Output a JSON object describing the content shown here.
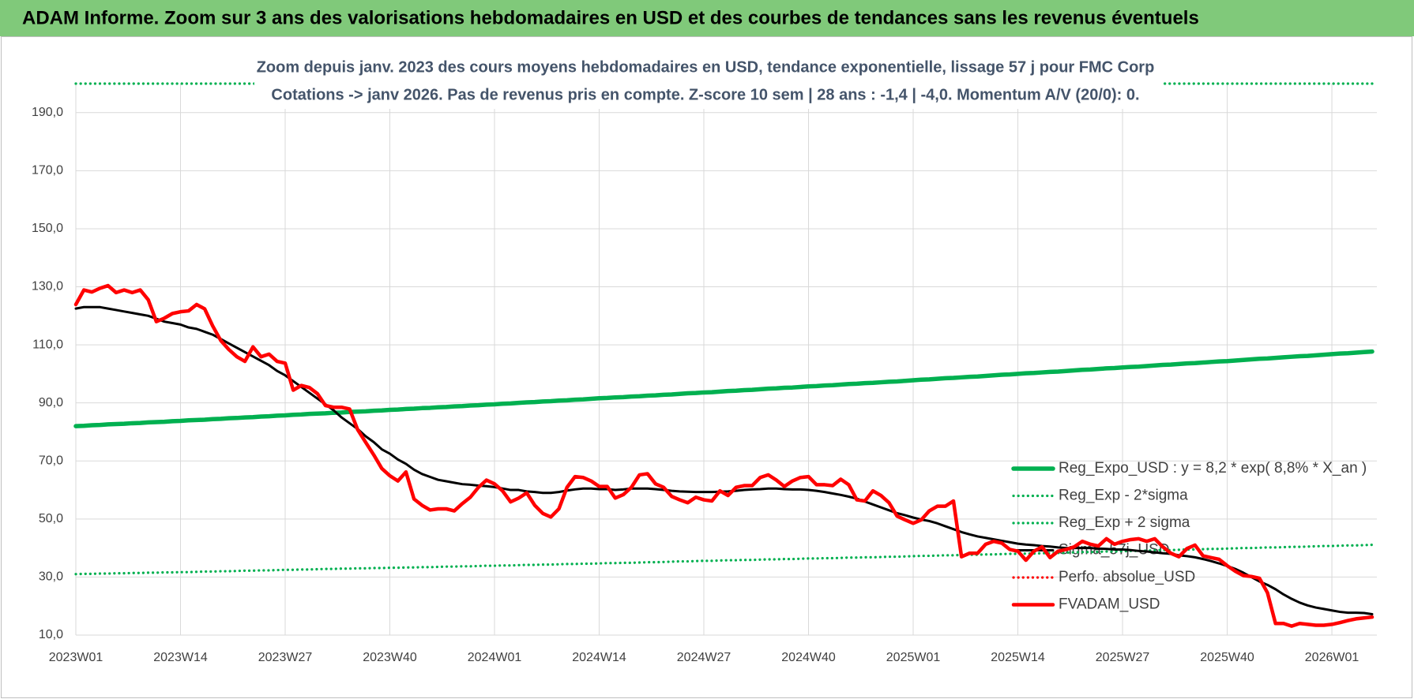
{
  "header": {
    "title": "ADAM Informe. Zoom sur 3 ans des valorisations hebdomadaires en USD et des courbes de tendances sans les revenus éventuels"
  },
  "chart_data": {
    "type": "line",
    "title": "Zoom depuis janv. 2023 des cours moyens hebdomadaires en USD, tendance exponentielle, lissage 57 j pour FMC Corp",
    "subtitle": "Cotations -> janv 2026. Pas de revenus pris en compte. Z-score 10 sem | 28 ans : -1,4 | -4,0. Momentum A/V (20/0): 0.",
    "categories": [
      "2023W01",
      null,
      null,
      null,
      null,
      null,
      null,
      null,
      null,
      null,
      null,
      null,
      null,
      "2023W14",
      null,
      null,
      null,
      null,
      null,
      null,
      null,
      null,
      null,
      null,
      null,
      null,
      "2023W27",
      null,
      null,
      null,
      null,
      null,
      null,
      null,
      null,
      null,
      null,
      null,
      null,
      "2023W40",
      null,
      null,
      null,
      null,
      null,
      null,
      null,
      null,
      null,
      null,
      null,
      null,
      "2024W01",
      null,
      null,
      null,
      null,
      null,
      null,
      null,
      null,
      null,
      null,
      null,
      null,
      "2024W14",
      null,
      null,
      null,
      null,
      null,
      null,
      null,
      null,
      null,
      null,
      null,
      null,
      "2024W27",
      null,
      null,
      null,
      null,
      null,
      null,
      null,
      null,
      null,
      null,
      null,
      null,
      "2024W40",
      null,
      null,
      null,
      null,
      null,
      null,
      null,
      null,
      null,
      null,
      null,
      null,
      "2025W01",
      null,
      null,
      null,
      null,
      null,
      null,
      null,
      null,
      null,
      null,
      null,
      null,
      "2025W14",
      null,
      null,
      null,
      null,
      null,
      null,
      null,
      null,
      null,
      null,
      null,
      null,
      "2025W27",
      null,
      null,
      null,
      null,
      null,
      null,
      null,
      null,
      null,
      null,
      null,
      null,
      "2025W40",
      null,
      null,
      null,
      null,
      null,
      null,
      null,
      null,
      null,
      null,
      null,
      null,
      "2026W01",
      null,
      null,
      null,
      null,
      null
    ],
    "series": [
      {
        "name": "Reg_Expo_USD : y = 8,2 * exp( 8,8% * X_an )",
        "color": "#00b050",
        "style": "solid",
        "values": [
          82.0,
          82.1,
          82.3,
          82.4,
          82.6,
          82.7,
          82.8,
          83.0,
          83.1,
          83.3,
          83.4,
          83.5,
          83.7,
          83.8,
          84.0,
          84.1,
          84.2,
          84.4,
          84.5,
          84.7,
          84.8,
          85.0,
          85.1,
          85.3,
          85.4,
          85.6,
          85.7,
          85.9,
          86.0,
          86.2,
          86.3,
          86.4,
          86.6,
          86.7,
          86.9,
          87.0,
          87.1,
          87.3,
          87.4,
          87.6,
          87.7,
          87.9,
          88.0,
          88.2,
          88.3,
          88.5,
          88.6,
          88.8,
          88.9,
          89.1,
          89.2,
          89.4,
          89.5,
          89.7,
          89.8,
          90.0,
          90.2,
          90.3,
          90.5,
          90.6,
          90.8,
          90.9,
          91.1,
          91.2,
          91.4,
          91.6,
          91.7,
          91.9,
          92.0,
          92.2,
          92.3,
          92.5,
          92.6,
          92.8,
          92.9,
          93.1,
          93.3,
          93.4,
          93.6,
          93.7,
          93.9,
          94.1,
          94.2,
          94.4,
          94.5,
          94.7,
          94.9,
          95.0,
          95.2,
          95.3,
          95.5,
          95.7,
          95.8,
          96.0,
          96.1,
          96.3,
          96.5,
          96.6,
          96.8,
          96.9,
          97.1,
          97.3,
          97.4,
          97.6,
          97.8,
          98.0,
          98.1,
          98.3,
          98.5,
          98.6,
          98.8,
          99.0,
          99.1,
          99.3,
          99.5,
          99.7,
          99.8,
          100.0,
          100.2,
          100.3,
          100.5,
          100.7,
          100.8,
          101.0,
          101.2,
          101.4,
          101.5,
          101.7,
          101.9,
          102.0,
          102.2,
          102.4,
          102.5,
          102.7,
          102.9,
          103.1,
          103.2,
          103.4,
          103.6,
          103.7,
          103.9,
          104.1,
          104.3,
          104.4,
          104.6,
          104.8,
          105.0,
          105.2,
          105.3,
          105.5,
          105.7,
          105.9,
          106.1,
          106.2,
          106.4,
          106.6,
          106.8,
          107.0,
          107.1,
          107.3,
          107.5,
          107.7
        ]
      },
      {
        "name": "Reg_Exp - 2*sigma",
        "color": "#00b050",
        "style": "dotted",
        "values": [
          31.0,
          31.1,
          31.1,
          31.2,
          31.2,
          31.3,
          31.3,
          31.4,
          31.4,
          31.5,
          31.5,
          31.6,
          31.6,
          31.7,
          31.7,
          31.8,
          31.9,
          31.9,
          32.0,
          32.0,
          32.1,
          32.2,
          32.2,
          32.3,
          32.3,
          32.4,
          32.5,
          32.5,
          32.6,
          32.6,
          32.7,
          32.8,
          32.8,
          32.9,
          32.9,
          33.0,
          33.0,
          33.1,
          33.1,
          33.2,
          33.2,
          33.3,
          33.3,
          33.4,
          33.4,
          33.5,
          33.6,
          33.6,
          33.7,
          33.7,
          33.8,
          33.9,
          33.9,
          34.0,
          34.0,
          34.1,
          34.2,
          34.2,
          34.3,
          34.3,
          34.4,
          34.5,
          34.5,
          34.6,
          34.6,
          34.7,
          34.8,
          34.8,
          34.9,
          34.9,
          35.0,
          35.1,
          35.1,
          35.2,
          35.3,
          35.4,
          35.4,
          35.5,
          35.6,
          35.6,
          35.7,
          35.8,
          35.8,
          35.9,
          35.9,
          36.0,
          36.1,
          36.1,
          36.2,
          36.2,
          36.3,
          36.4,
          36.4,
          36.5,
          36.5,
          36.6,
          36.7,
          36.7,
          36.8,
          36.8,
          36.9,
          37.0,
          37.0,
          37.1,
          37.2,
          37.3,
          37.3,
          37.4,
          37.5,
          37.5,
          37.6,
          37.7,
          37.7,
          37.8,
          37.8,
          37.9,
          38.0,
          38.0,
          38.1,
          38.1,
          38.2,
          38.3,
          38.3,
          38.4,
          38.5,
          38.6,
          38.6,
          38.7,
          38.8,
          38.8,
          38.9,
          39.0,
          39.0,
          39.1,
          39.2,
          39.3,
          39.3,
          39.4,
          39.5,
          39.5,
          39.6,
          39.7,
          39.7,
          39.8,
          39.9,
          40.0,
          40.0,
          40.1,
          40.2,
          40.2,
          40.3,
          40.4,
          40.4,
          40.5,
          40.6,
          40.7,
          40.7,
          40.8,
          40.9,
          40.9,
          41.0,
          41.1
        ]
      },
      {
        "name": "Reg_Exp + 2 sigma",
        "color": "#00b050",
        "style": "dotted",
        "values": [
          200,
          200,
          200,
          200,
          200,
          200,
          200,
          200,
          200,
          200,
          200,
          200,
          200,
          200,
          200,
          200,
          200,
          200,
          200,
          200,
          200,
          200,
          200,
          200,
          200,
          200,
          200,
          200,
          200,
          200,
          200,
          200,
          200,
          200,
          200,
          200,
          200,
          200,
          200,
          200,
          200,
          200,
          200,
          200,
          200,
          200,
          200,
          200,
          200,
          200,
          200,
          200,
          200,
          200,
          200,
          200,
          200,
          200,
          200,
          200,
          200,
          200,
          200,
          200,
          200,
          200,
          200,
          200,
          200,
          200,
          200,
          200,
          200,
          200,
          200,
          200,
          200,
          200,
          200,
          200,
          200,
          200,
          200,
          200,
          200,
          200,
          200,
          200,
          200,
          200,
          200,
          200,
          200,
          200,
          200,
          200,
          200,
          200,
          200,
          200,
          200,
          200,
          200,
          200,
          200,
          200,
          200,
          200,
          200,
          200,
          200,
          200,
          200,
          200,
          200,
          200,
          200,
          200,
          200,
          200,
          200,
          200,
          200,
          200,
          200,
          200,
          200,
          200,
          200,
          200,
          200,
          200,
          200,
          200,
          200,
          200,
          200,
          200,
          200,
          200,
          200,
          200,
          200,
          200,
          200,
          200,
          200,
          200,
          200,
          200,
          200,
          200,
          200,
          200,
          200,
          200,
          200,
          200,
          200,
          200,
          200,
          200
        ]
      },
      {
        "name": "Sigma_57j_USD",
        "color": "#000000",
        "style": "solid",
        "values": [
          122.5,
          123.0,
          123.0,
          123.0,
          122.5,
          122.0,
          121.5,
          121.0,
          120.5,
          120.0,
          119.0,
          118.0,
          117.5,
          117.0,
          116.0,
          115.5,
          114.5,
          113.5,
          112.0,
          110.5,
          109.0,
          107.5,
          106.0,
          104.5,
          103.0,
          101.0,
          99.5,
          97.5,
          95.5,
          93.5,
          91.5,
          89.5,
          87.5,
          85.0,
          83.0,
          81.0,
          78.5,
          76.5,
          74.0,
          72.5,
          70.5,
          69.0,
          67.0,
          65.5,
          64.5,
          63.5,
          63.0,
          62.5,
          62.0,
          61.8,
          61.5,
          61.3,
          61.0,
          60.5,
          60.0,
          60.0,
          59.5,
          59.3,
          59.0,
          59.0,
          59.3,
          59.8,
          60.2,
          60.5,
          60.5,
          60.3,
          60.3,
          60.0,
          60.2,
          60.5,
          60.5,
          60.5,
          60.3,
          60.0,
          59.7,
          59.5,
          59.4,
          59.3,
          59.3,
          59.3,
          59.4,
          59.5,
          59.7,
          60.0,
          60.2,
          60.3,
          60.5,
          60.5,
          60.3,
          60.2,
          60.2,
          60.0,
          59.7,
          59.3,
          58.8,
          58.3,
          57.7,
          57.0,
          56.0,
          55.0,
          54.0,
          53.0,
          52.0,
          51.3,
          50.5,
          49.8,
          49.3,
          48.5,
          47.5,
          46.5,
          45.5,
          44.7,
          44.0,
          43.5,
          43.0,
          42.5,
          42.0,
          41.5,
          41.2,
          41.0,
          40.7,
          40.5,
          40.2,
          40.0,
          40.0,
          40.0,
          40.0,
          39.8,
          39.7,
          39.5,
          39.5,
          39.3,
          39.0,
          38.8,
          38.5,
          38.2,
          38.0,
          37.5,
          37.2,
          36.8,
          36.2,
          35.5,
          34.7,
          33.8,
          32.8,
          31.5,
          30.0,
          28.5,
          27.3,
          25.8,
          24.0,
          22.5,
          21.2,
          20.2,
          19.5,
          19.0,
          18.5,
          18.0,
          17.7,
          17.7,
          17.6,
          17.2
        ]
      },
      {
        "name": "Perfo. absolue_USD",
        "color": "#ff0000",
        "style": "dotted",
        "values": [
          null,
          null,
          null,
          null,
          null,
          null,
          null,
          null,
          null,
          null,
          null,
          null,
          null,
          null,
          null,
          null,
          null,
          null,
          null,
          null,
          null,
          null,
          null,
          null,
          null,
          null,
          null,
          null,
          null,
          null,
          null,
          null,
          null,
          null,
          null,
          null,
          null,
          null,
          null,
          null,
          null,
          null,
          null,
          null,
          null,
          null,
          null,
          null,
          null,
          null,
          null,
          null,
          null,
          null,
          null,
          null,
          null,
          null,
          null,
          null,
          null,
          null,
          null,
          null,
          null,
          null,
          null,
          null,
          null,
          null,
          null,
          null,
          null,
          null,
          null,
          null,
          null,
          null,
          null,
          null,
          null,
          null,
          null,
          null,
          null,
          null,
          null,
          null,
          null,
          null,
          null,
          null,
          null,
          null,
          null,
          null,
          null,
          null,
          null,
          null,
          null,
          null,
          null,
          null,
          null,
          null,
          null,
          null,
          null,
          null,
          null,
          null,
          null,
          null,
          null,
          null,
          null,
          null,
          null,
          null,
          null,
          null,
          null,
          null,
          null,
          null,
          null,
          null,
          null,
          null,
          null,
          null,
          null,
          null,
          null,
          null,
          null,
          null,
          null,
          null,
          null,
          null,
          null,
          null,
          null,
          null,
          null,
          null,
          null,
          null,
          null,
          null,
          null,
          null,
          null,
          null,
          null,
          null,
          null,
          null,
          null,
          null
        ]
      },
      {
        "name": "FVADAM_USD",
        "color": "#ff0000",
        "style": "solid",
        "values": [
          123.9,
          128.9,
          128.2,
          129.5,
          130.4,
          128.0,
          128.9,
          128.0,
          128.9,
          125.5,
          118.0,
          119.2,
          120.8,
          121.4,
          121.7,
          123.9,
          122.4,
          116.5,
          111.5,
          108.4,
          105.9,
          104.3,
          109.3,
          105.9,
          106.8,
          104.3,
          103.7,
          94.4,
          96.0,
          95.3,
          93.2,
          89.1,
          88.5,
          88.5,
          87.9,
          80.8,
          76.4,
          72.1,
          67.4,
          64.9,
          63.1,
          66.2,
          56.9,
          54.7,
          53.1,
          53.5,
          53.5,
          52.8,
          55.3,
          57.5,
          60.9,
          63.4,
          62.1,
          59.7,
          55.9,
          57.2,
          59.0,
          54.7,
          51.9,
          50.7,
          53.5,
          60.9,
          64.6,
          64.3,
          63.1,
          61.2,
          61.2,
          57.2,
          58.4,
          60.9,
          65.2,
          65.6,
          62.1,
          60.9,
          57.8,
          56.6,
          55.6,
          57.5,
          56.6,
          56.2,
          59.7,
          58.1,
          60.9,
          61.5,
          61.5,
          64.3,
          65.2,
          63.4,
          61.2,
          63.1,
          64.3,
          64.6,
          61.8,
          61.8,
          61.5,
          63.7,
          61.8,
          56.6,
          56.2,
          59.7,
          58.1,
          55.6,
          51.0,
          49.7,
          48.5,
          49.7,
          52.8,
          54.4,
          54.4,
          56.2,
          37.0,
          38.2,
          38.2,
          41.3,
          42.3,
          41.7,
          39.5,
          38.9,
          35.8,
          38.9,
          40.4,
          36.7,
          38.9,
          39.5,
          40.4,
          42.3,
          41.3,
          40.7,
          43.2,
          41.3,
          42.3,
          42.9,
          43.2,
          42.3,
          43.2,
          40.4,
          38.2,
          37.0,
          39.8,
          41.0,
          37.3,
          36.7,
          36.1,
          33.9,
          32.0,
          30.5,
          30.2,
          29.6,
          24.6,
          14.0,
          14.0,
          13.1,
          14.0,
          13.7,
          13.4,
          13.4,
          13.7,
          14.3,
          15.0,
          15.6,
          15.9,
          16.2
        ]
      }
    ],
    "ylim": [
      10,
      200
    ],
    "yticks": [
      {
        "value": 10,
        "label": "10,0"
      },
      {
        "value": 30,
        "label": "30,0"
      },
      {
        "value": 50,
        "label": "50,0"
      },
      {
        "value": 70,
        "label": "70,0"
      },
      {
        "value": 90,
        "label": "90,0"
      },
      {
        "value": 110,
        "label": "110,0"
      },
      {
        "value": 130,
        "label": "130,0"
      },
      {
        "value": 150,
        "label": "150,0"
      },
      {
        "value": 170,
        "label": "170,0"
      },
      {
        "value": 190,
        "label": "190,0"
      }
    ],
    "grid": true,
    "legend": "lower right"
  }
}
